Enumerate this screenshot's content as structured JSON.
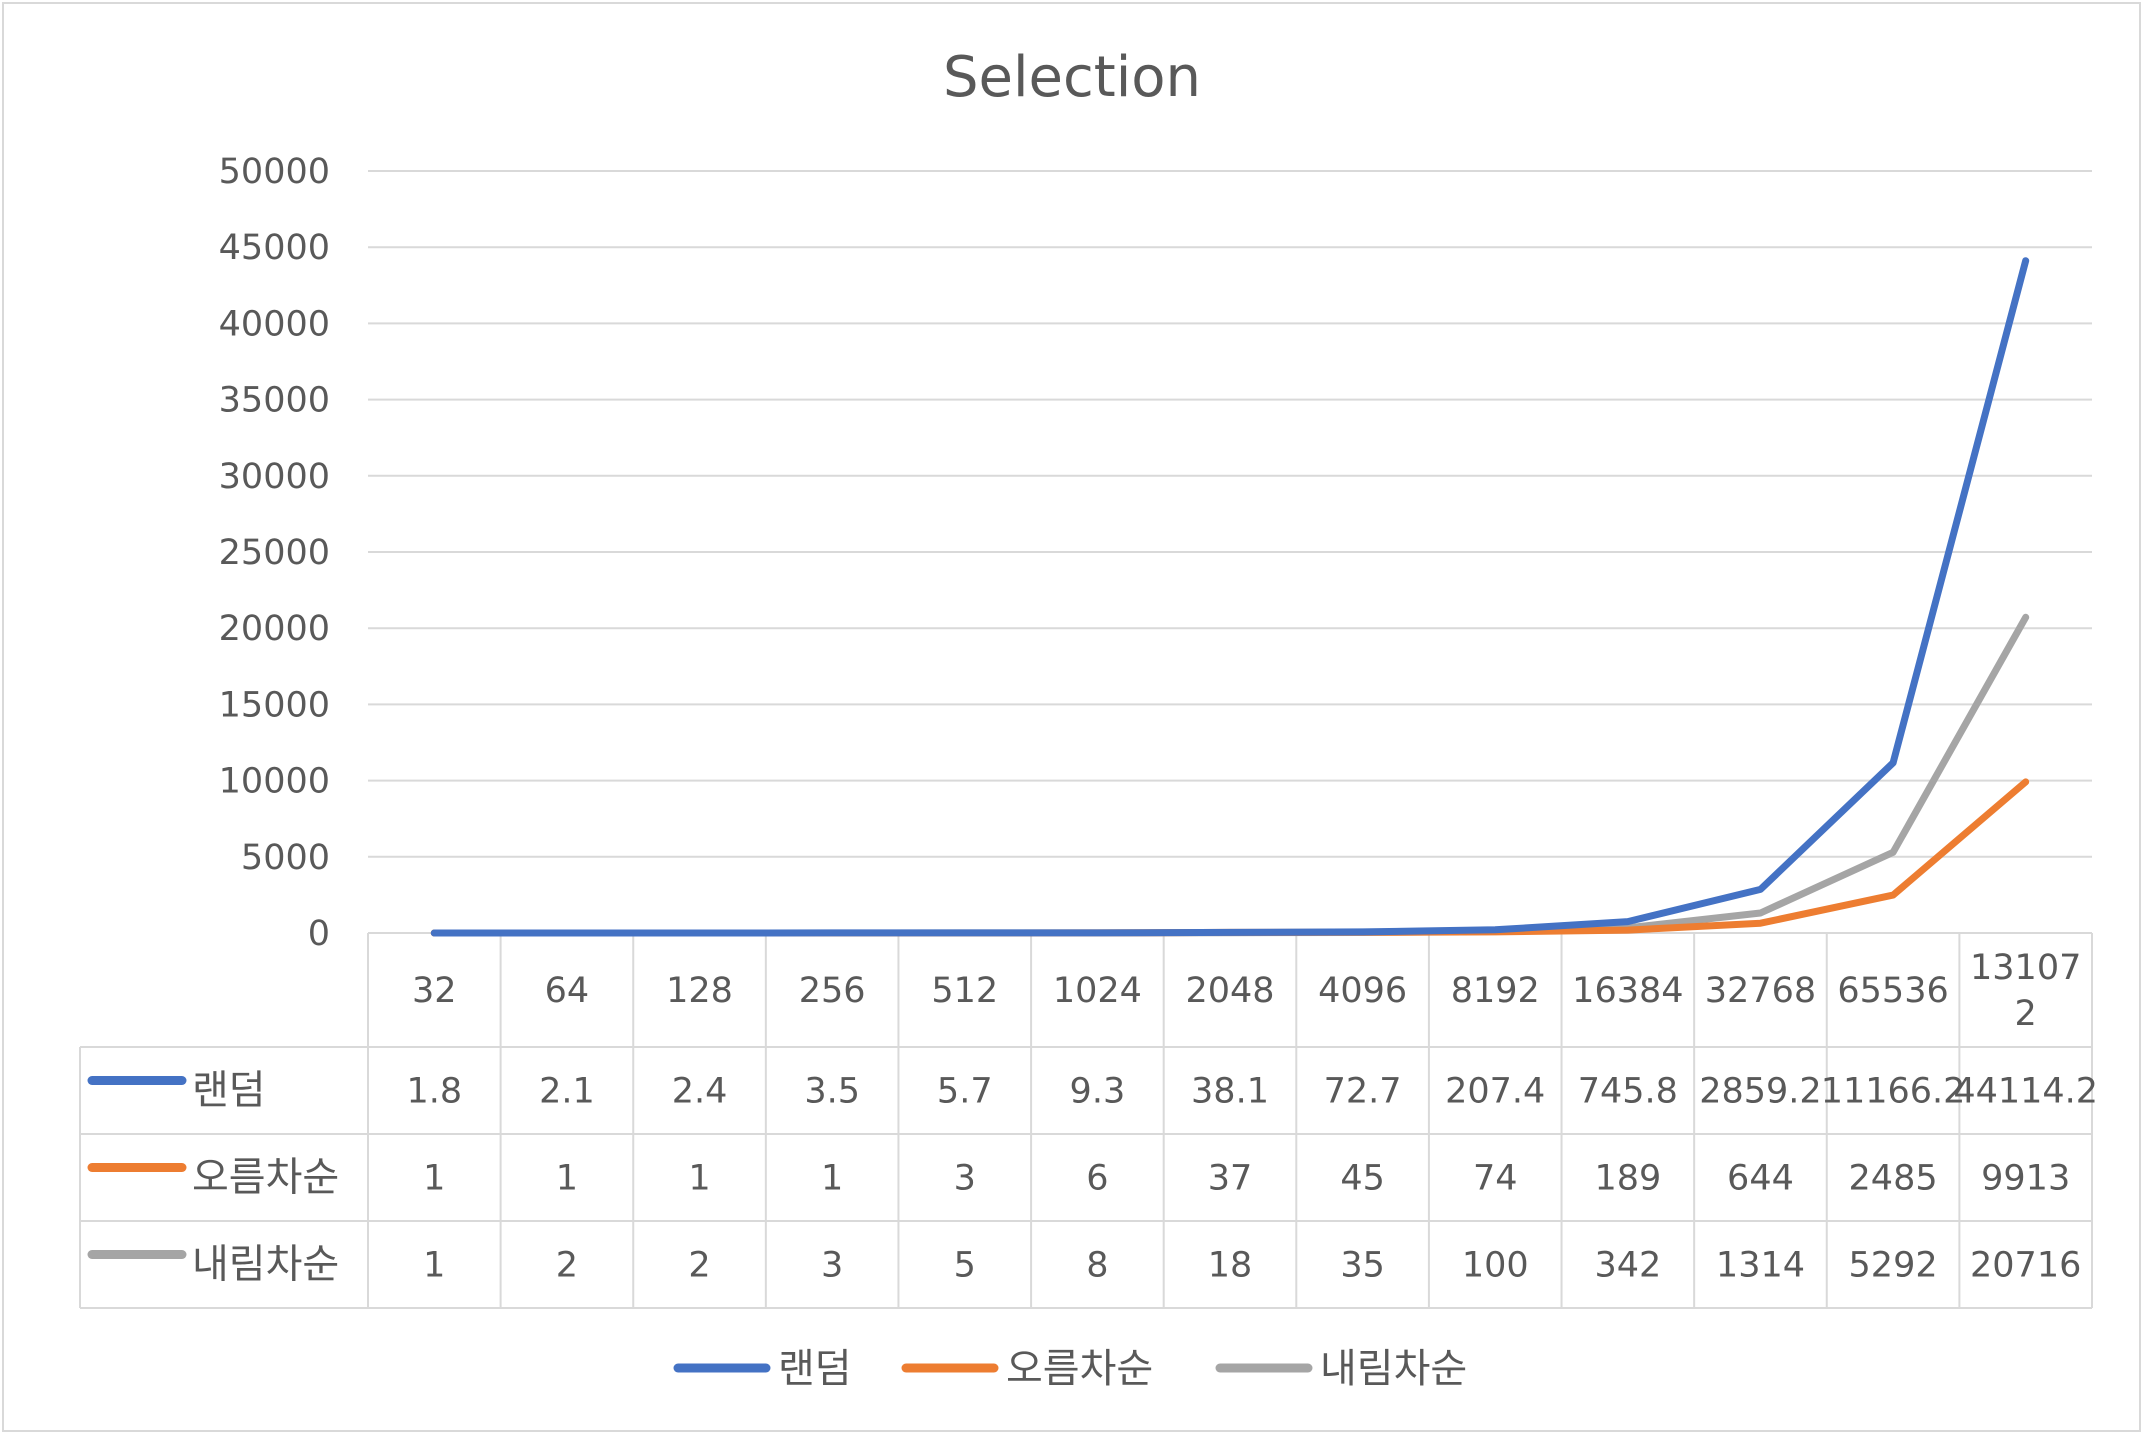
{
  "chart_data": {
    "type": "line",
    "title": "Selection",
    "categories": [
      "32",
      "64",
      "128",
      "256",
      "512",
      "1024",
      "2048",
      "4096",
      "8192",
      "16384",
      "32768",
      "65536",
      "131072"
    ],
    "category_labels": [
      "32",
      "64",
      "128",
      "256",
      "512",
      "1024",
      "2048",
      "4096",
      "8192",
      "16384",
      "32768",
      "65536",
      "13107\n2"
    ],
    "ylim": [
      0,
      50000
    ],
    "yticks": [
      0,
      5000,
      10000,
      15000,
      20000,
      25000,
      30000,
      35000,
      40000,
      45000,
      50000
    ],
    "grid": true,
    "legend_position": "bottom",
    "data_table": true,
    "series": [
      {
        "name": "랜덤",
        "color": "#4472c4",
        "values": [
          1.8,
          2.1,
          2.4,
          3.5,
          5.7,
          9.3,
          38.1,
          72.7,
          207.4,
          745.8,
          2859.2,
          11166.2,
          44114.2
        ],
        "display": [
          "1.8",
          "2.1",
          "2.4",
          "3.5",
          "5.7",
          "9.3",
          "38.1",
          "72.7",
          "207.4",
          "745.8",
          "2859.2",
          "11166.2",
          "44114.2"
        ]
      },
      {
        "name": "오름차순",
        "color": "#ed7d31",
        "values": [
          1,
          1,
          1,
          1,
          3,
          6,
          37,
          45,
          74,
          189,
          644,
          2485,
          9913
        ],
        "display": [
          "1",
          "1",
          "1",
          "1",
          "3",
          "6",
          "37",
          "45",
          "74",
          "189",
          "644",
          "2485",
          "9913"
        ]
      },
      {
        "name": "내림차순",
        "color": "#a5a5a5",
        "values": [
          1,
          2,
          2,
          3,
          5,
          8,
          18,
          35,
          100,
          342,
          1314,
          5292,
          20716
        ],
        "display": [
          "1",
          "2",
          "2",
          "3",
          "5",
          "8",
          "18",
          "35",
          "100",
          "342",
          "1314",
          "5292",
          "20716"
        ]
      }
    ]
  }
}
